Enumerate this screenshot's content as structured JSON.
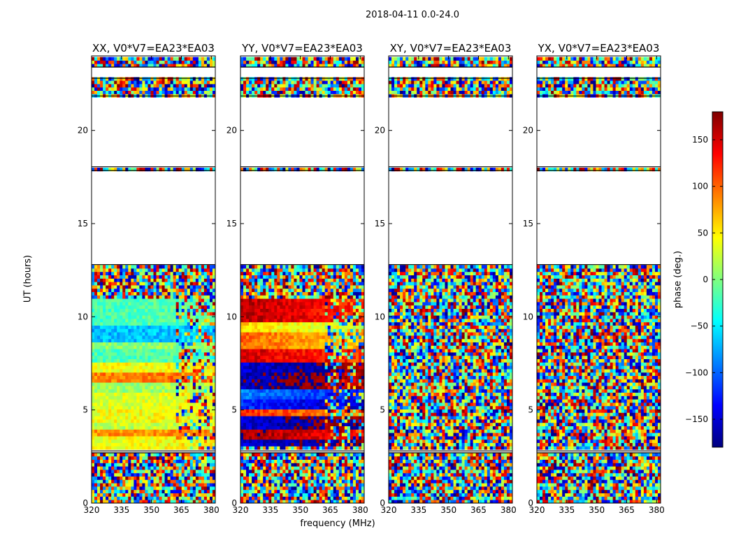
{
  "figure": {
    "suptitle": "2018-04-11 0.0-24.0",
    "ylabel": "UT (hours)",
    "xlabel": "frequency (MHz)",
    "colorbar_label": "phase (deg.)"
  },
  "colors": {
    "colormap": [
      "#00007f",
      "#0000ff",
      "#007fff",
      "#00ffff",
      "#7fff7f",
      "#ffff00",
      "#ff7f00",
      "#ff0000",
      "#7f0000"
    ],
    "gap": "#ffffff",
    "flag_line": "#000000"
  },
  "chart_data": [
    {
      "type": "heatmap",
      "title": "XX, V0*V7=EA23*EA03",
      "x_ticks": [
        320,
        335,
        350,
        365,
        380
      ],
      "y_ticks": [
        0,
        5,
        10,
        15,
        20
      ],
      "xlim": [
        320,
        382
      ],
      "ylim": [
        0,
        24
      ],
      "color_range": [
        -180,
        180
      ],
      "coherent_bands": [
        {
          "t": [
            2.9,
            3.6
          ],
          "phase": 40
        },
        {
          "t": [
            3.6,
            4.0
          ],
          "phase": 80
        },
        {
          "t": [
            4.0,
            4.4
          ],
          "phase": 20
        },
        {
          "t": [
            4.4,
            5.0
          ],
          "phase": 40
        },
        {
          "t": [
            5.0,
            6.0
          ],
          "phase": 30
        },
        {
          "t": [
            6.0,
            6.5
          ],
          "phase": 10
        },
        {
          "t": [
            6.5,
            7.0
          ],
          "phase": 90
        },
        {
          "t": [
            7.0,
            7.5
          ],
          "phase": 40
        },
        {
          "t": [
            7.5,
            8.3
          ],
          "phase": -20
        },
        {
          "t": [
            8.3,
            8.6
          ],
          "phase": 0
        },
        {
          "t": [
            8.6,
            9.6
          ],
          "phase": -70
        },
        {
          "t": [
            9.6,
            11.0
          ],
          "phase": -20
        }
      ]
    },
    {
      "type": "heatmap",
      "title": "YY, V0*V7=EA23*EA03",
      "x_ticks": [
        320,
        335,
        350,
        365,
        380
      ],
      "y_ticks": [
        0,
        5,
        10,
        15,
        20
      ],
      "xlim": [
        320,
        382
      ],
      "ylim": [
        0,
        24
      ],
      "color_range": [
        -180,
        180
      ],
      "coherent_bands": [
        {
          "t": [
            3.0,
            3.5
          ],
          "phase": -150
        },
        {
          "t": [
            3.5,
            4.0
          ],
          "phase": 170
        },
        {
          "t": [
            4.0,
            4.6
          ],
          "phase": -150
        },
        {
          "t": [
            4.6,
            5.0
          ],
          "phase": 120
        },
        {
          "t": [
            5.0,
            5.6
          ],
          "phase": -120
        },
        {
          "t": [
            5.6,
            6.2
          ],
          "phase": -90
        },
        {
          "t": [
            6.2,
            7.0
          ],
          "phase": -160
        },
        {
          "t": [
            7.0,
            7.6
          ],
          "phase": -150
        },
        {
          "t": [
            7.6,
            8.3
          ],
          "phase": 150
        },
        {
          "t": [
            8.3,
            9.2
          ],
          "phase": 100
        },
        {
          "t": [
            9.2,
            9.7
          ],
          "phase": 60
        },
        {
          "t": [
            9.7,
            11.0
          ],
          "phase": 160
        }
      ]
    },
    {
      "type": "heatmap",
      "title": "XY, V0*V7=EA23*EA03",
      "x_ticks": [
        320,
        335,
        350,
        365,
        380
      ],
      "y_ticks": [
        0,
        5,
        10,
        15,
        20
      ],
      "xlim": [
        320,
        382
      ],
      "ylim": [
        0,
        24
      ],
      "color_range": [
        -180,
        180
      ],
      "coherent_bands": []
    },
    {
      "type": "heatmap",
      "title": "YX, V0*V7=EA23*EA03",
      "x_ticks": [
        320,
        335,
        350,
        365,
        380
      ],
      "y_ticks": [
        0,
        5,
        10,
        15,
        20
      ],
      "xlim": [
        320,
        382
      ],
      "ylim": [
        0,
        24
      ],
      "color_range": [
        -180,
        180
      ],
      "coherent_bands": []
    }
  ],
  "data_intervals_hours": [
    [
      0.0,
      2.7
    ],
    [
      2.8,
      12.8
    ],
    [
      17.85,
      18.05
    ],
    [
      21.85,
      22.8
    ],
    [
      23.4,
      24.0
    ]
  ],
  "colorbar": {
    "ticks": [
      -150,
      -100,
      -50,
      0,
      50,
      100,
      150
    ],
    "range": [
      -180,
      180
    ]
  }
}
